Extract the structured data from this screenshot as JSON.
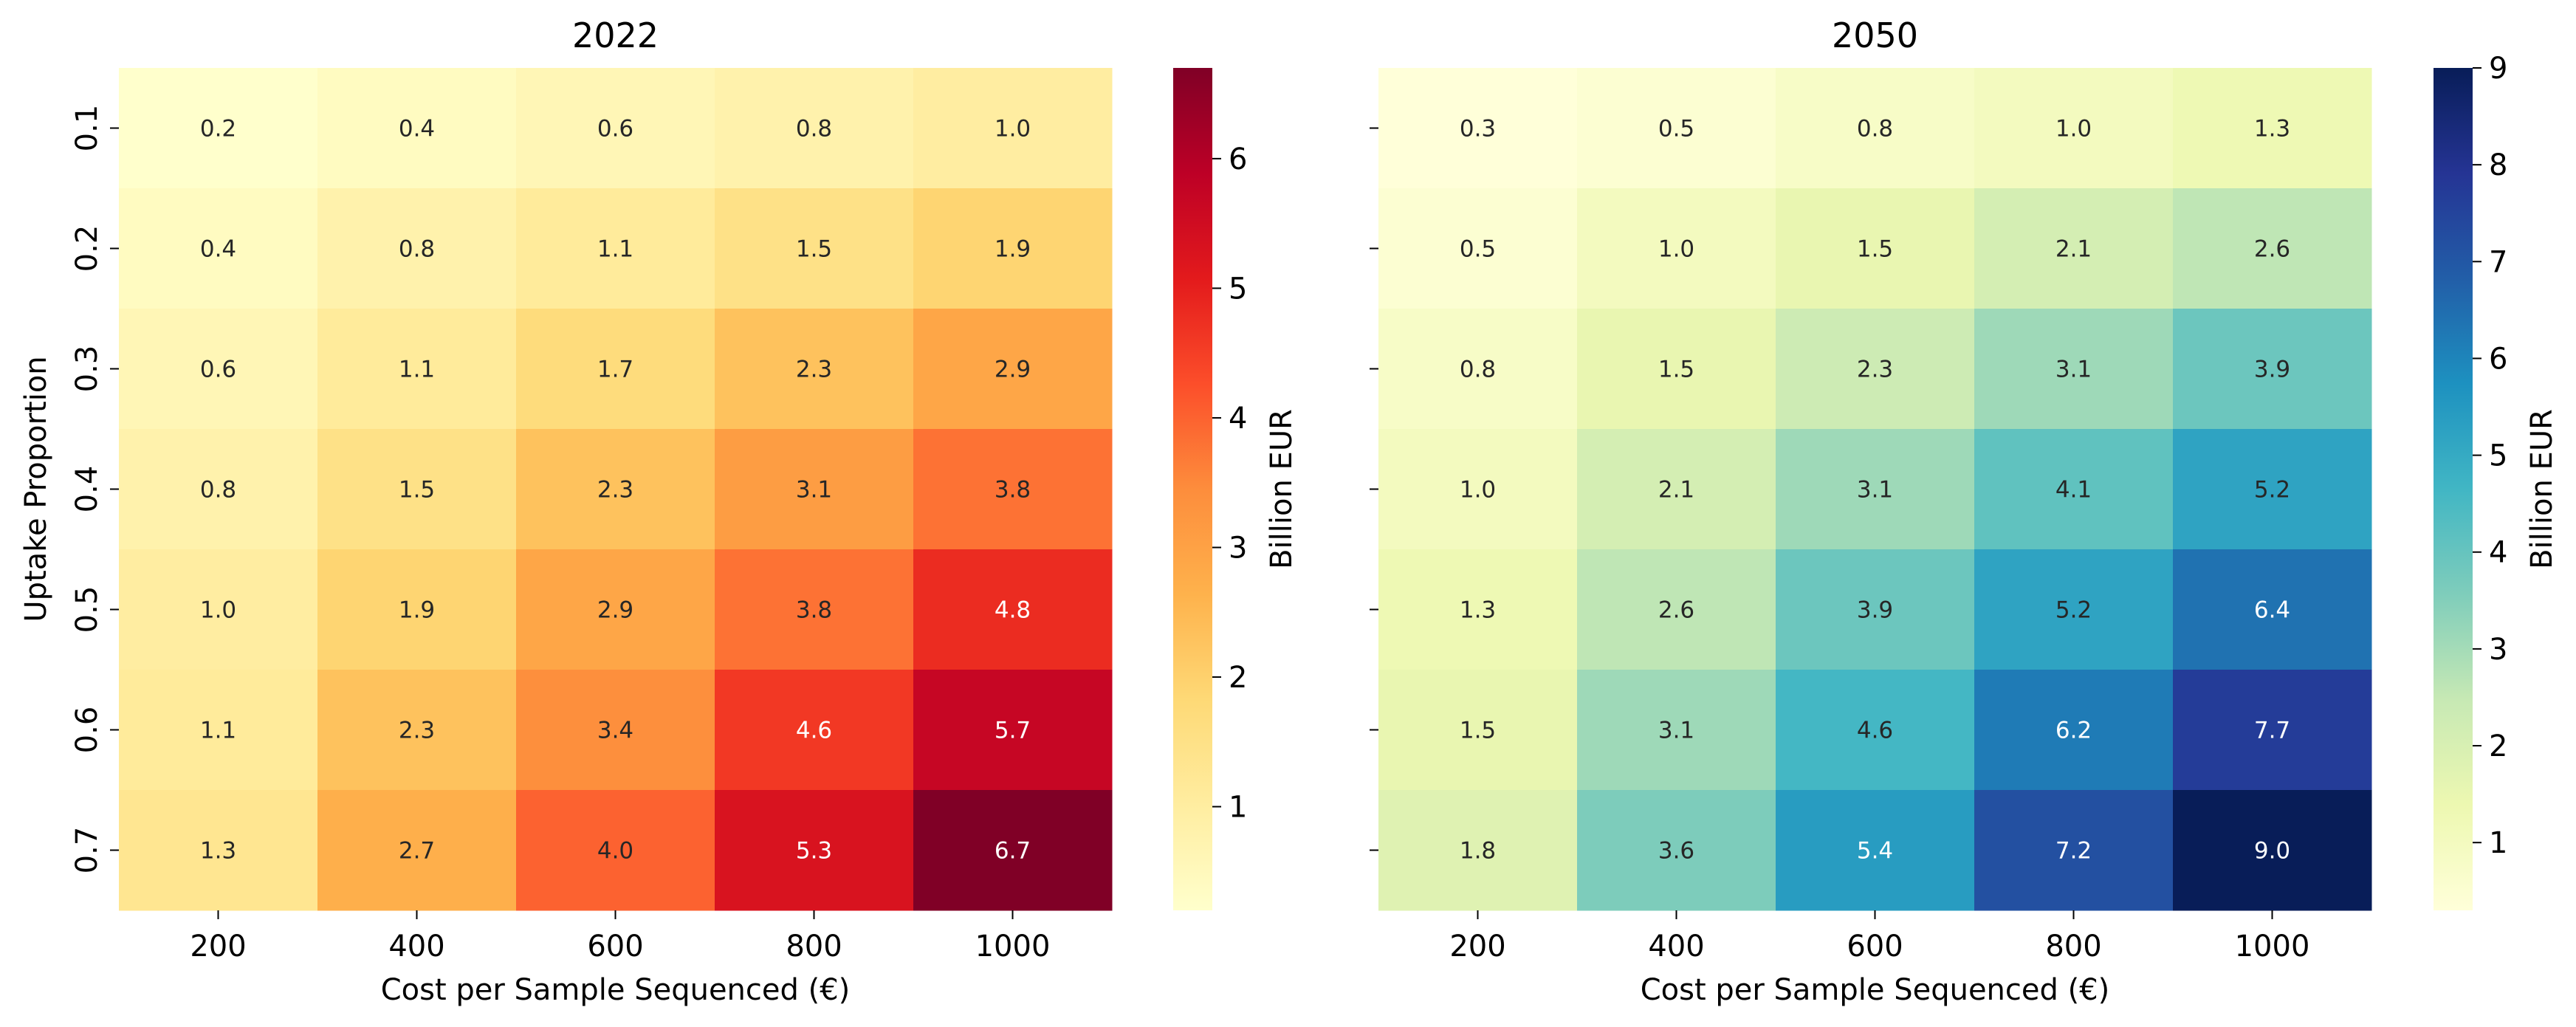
{
  "chart_data": [
    {
      "type": "heatmap",
      "title": "2022",
      "xlabel": "Cost per Sample Sequenced (€)",
      "ylabel": "Uptake Proportion",
      "x_categories": [
        "200",
        "400",
        "600",
        "800",
        "1000"
      ],
      "y_categories": [
        "0.1",
        "0.2",
        "0.3",
        "0.4",
        "0.5",
        "0.6",
        "0.7"
      ],
      "values": [
        [
          0.2,
          0.4,
          0.6,
          0.8,
          1.0
        ],
        [
          0.4,
          0.8,
          1.1,
          1.5,
          1.9
        ],
        [
          0.6,
          1.1,
          1.7,
          2.3,
          2.9
        ],
        [
          0.8,
          1.5,
          2.3,
          3.1,
          3.8
        ],
        [
          1.0,
          1.9,
          2.9,
          3.8,
          4.8
        ],
        [
          1.1,
          2.3,
          3.4,
          4.6,
          5.7
        ],
        [
          1.3,
          2.7,
          4.0,
          5.3,
          6.7
        ]
      ],
      "colorscale": "YlOrRd",
      "colorbar": {
        "label": "Billion EUR",
        "ticks": [
          "1",
          "2",
          "3",
          "4",
          "5",
          "6"
        ],
        "range": [
          0.2,
          6.7
        ]
      }
    },
    {
      "type": "heatmap",
      "title": "2050",
      "xlabel": "Cost per Sample Sequenced (€)",
      "ylabel": "",
      "x_categories": [
        "200",
        "400",
        "600",
        "800",
        "1000"
      ],
      "y_categories": [
        "0.1",
        "0.2",
        "0.3",
        "0.4",
        "0.5",
        "0.6",
        "0.7"
      ],
      "values": [
        [
          0.3,
          0.5,
          0.8,
          1.0,
          1.3
        ],
        [
          0.5,
          1.0,
          1.5,
          2.1,
          2.6
        ],
        [
          0.8,
          1.5,
          2.3,
          3.1,
          3.9
        ],
        [
          1.0,
          2.1,
          3.1,
          4.1,
          5.2
        ],
        [
          1.3,
          2.6,
          3.9,
          5.2,
          6.4
        ],
        [
          1.5,
          3.1,
          4.6,
          6.2,
          7.7
        ],
        [
          1.8,
          3.6,
          5.4,
          7.2,
          9.0
        ]
      ],
      "colorscale": "YlGnBu",
      "colorbar": {
        "label": "Billion EUR",
        "ticks": [
          "1",
          "2",
          "3",
          "4",
          "5",
          "6",
          "7",
          "8",
          "9"
        ],
        "range": [
          0.3,
          9.0
        ]
      }
    }
  ]
}
